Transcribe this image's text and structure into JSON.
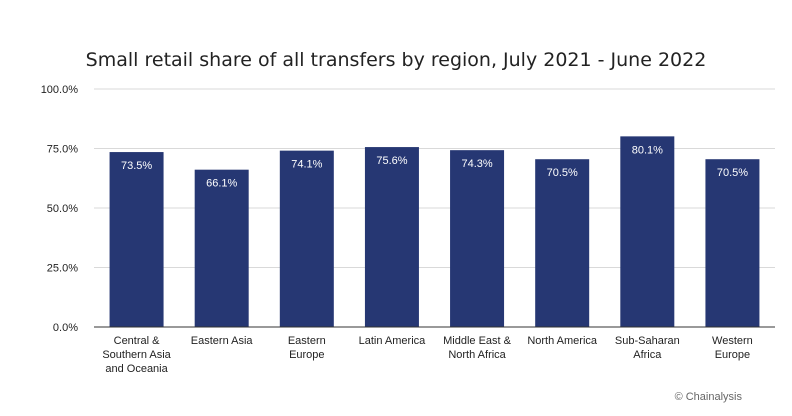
{
  "chart_data": {
    "type": "bar",
    "title": "Small retail share of all transfers by region, July 2021 - June 2022",
    "xlabel": "",
    "ylabel": "",
    "categories": [
      [
        "Central &",
        "Southern Asia",
        "and Oceania"
      ],
      [
        "Eastern Asia"
      ],
      [
        "Eastern",
        "Europe"
      ],
      [
        "Latin America"
      ],
      [
        "Middle East &",
        "North Africa"
      ],
      [
        "North America"
      ],
      [
        "Sub-Saharan",
        "Africa"
      ],
      [
        "Western",
        "Europe"
      ]
    ],
    "values": [
      73.5,
      66.1,
      74.1,
      75.6,
      74.3,
      70.5,
      80.1,
      70.5
    ],
    "data_labels": [
      "73.5%",
      "66.1%",
      "74.1%",
      "75.6%",
      "74.3%",
      "70.5%",
      "80.1%",
      "70.5%"
    ],
    "ylim": [
      0,
      100
    ],
    "yticks": [
      0,
      25,
      50,
      75,
      100
    ],
    "ytick_labels": [
      "0.0%",
      "25.0%",
      "50.0%",
      "75.0%",
      "100.0%"
    ],
    "grid": true,
    "legend": "none",
    "bar_color": "#263773"
  },
  "credit": "© Chainalysis"
}
